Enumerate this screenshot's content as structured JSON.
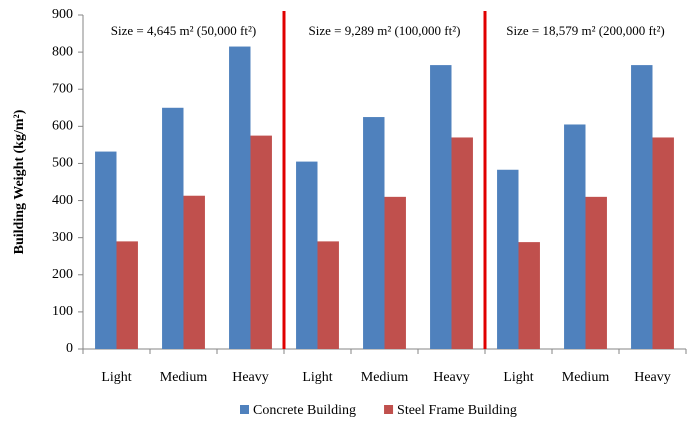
{
  "chart_data": {
    "type": "bar",
    "y_label": "Building Weight (kg/m²)",
    "categories": [
      "Light",
      "Medium",
      "Heavy",
      "Light",
      "Medium",
      "Heavy",
      "Light",
      "Medium",
      "Heavy"
    ],
    "series": [
      {
        "name": "Concrete Building",
        "color": "#4f81bd",
        "values": [
          532,
          650,
          815,
          505,
          625,
          765,
          483,
          605,
          765
        ]
      },
      {
        "name": "Steel Frame Building",
        "color": "#c0504d",
        "values": [
          290,
          413,
          575,
          290,
          410,
          570,
          288,
          410,
          570
        ]
      }
    ],
    "annotations": [
      "Size = 4,645 m² (50,000 ft²)",
      "Size = 9,289 m² (100,000 ft²)",
      "Size = 18,579 m² (200,000 ft²)"
    ],
    "separator_color": "#e00000",
    "ylim": [
      0,
      900
    ],
    "yticks": [
      0,
      100,
      200,
      300,
      400,
      500,
      600,
      700,
      800,
      900
    ],
    "grid": false,
    "legend": "bottom"
  }
}
